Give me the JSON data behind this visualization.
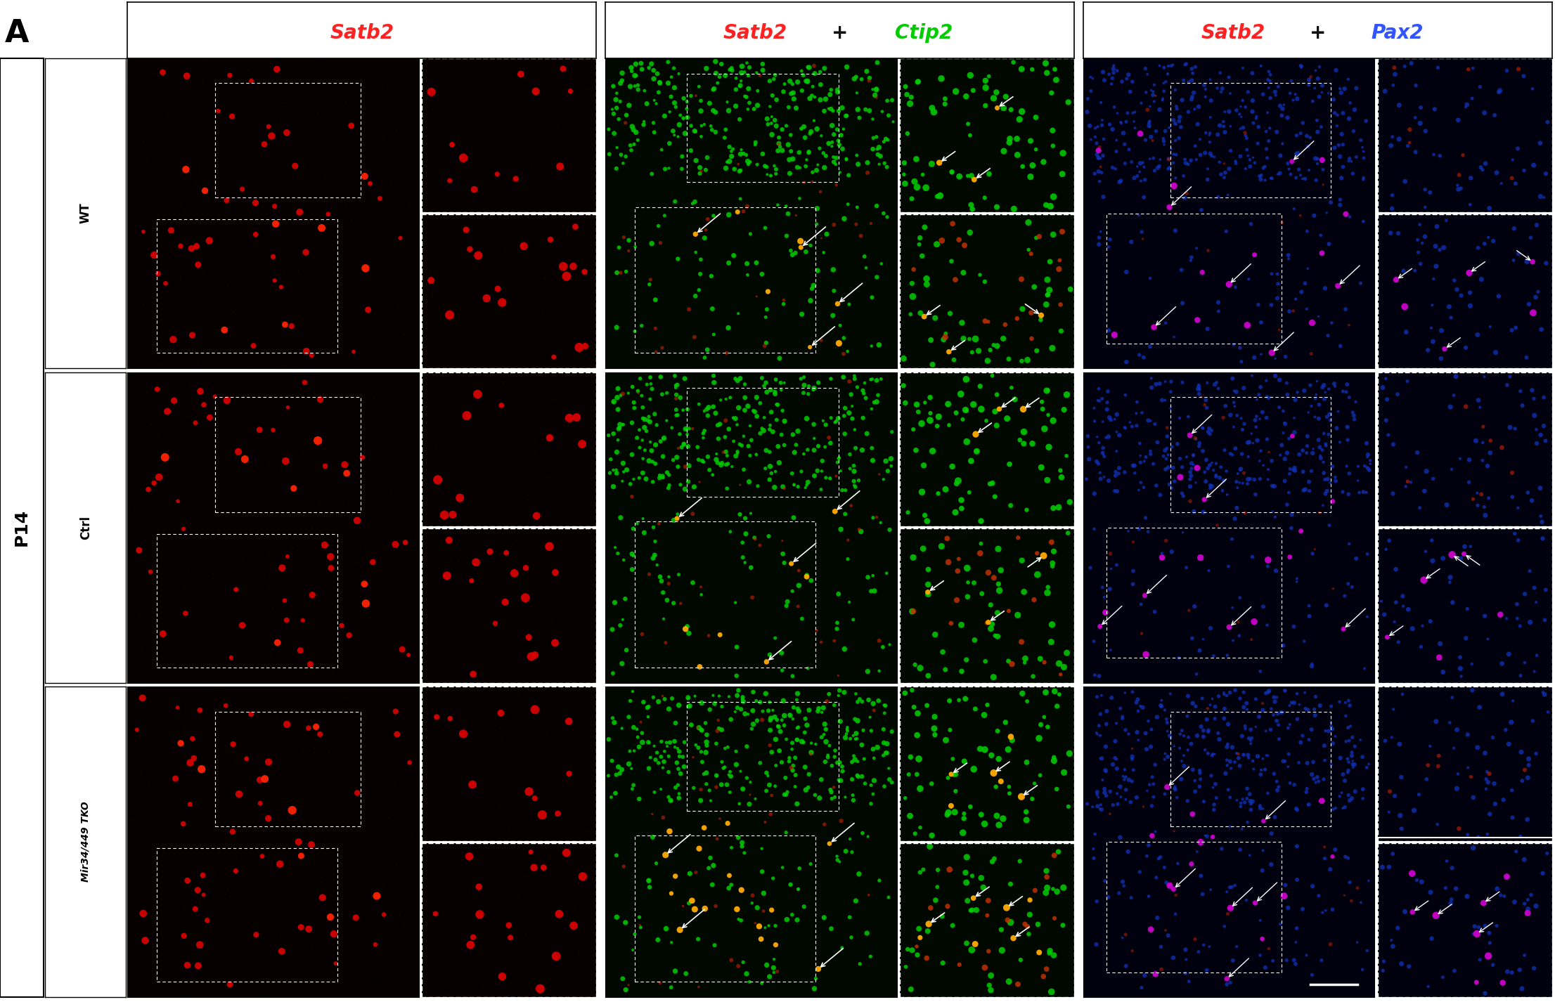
{
  "title_label": "A",
  "col_headers_col0": [
    [
      "Satb2",
      "#ff2222"
    ]
  ],
  "col_headers_col1": [
    [
      "Satb2",
      "#ff2222"
    ],
    [
      "+",
      "#111111"
    ],
    [
      "Ctip2",
      "#00ee00"
    ]
  ],
  "col_headers_col2": [
    [
      "Satb2",
      "#ff2222"
    ],
    [
      "+",
      "#111111"
    ],
    [
      "Pax2",
      "#3355ff"
    ]
  ],
  "row_labels": [
    "WT",
    "Ctrl",
    "Mir34/449 TKO"
  ],
  "row_label_italic": [
    false,
    false,
    true
  ],
  "p14_label": "P14",
  "outer_background": "#ffffff",
  "figsize": [
    22.12,
    14.26
  ],
  "dpi": 100,
  "col0_bg": "#0a0000",
  "col1_bg": "#000a00",
  "col2_bg": "#00000a",
  "dot_red": "#cc0000",
  "dot_bright_red": "#ff2200",
  "dot_green": "#00cc00",
  "dot_yellow": "#ffaa00",
  "dot_orange": "#ff6600",
  "dot_blue": "#2244bb",
  "dot_magenta": "#cc00cc",
  "dot_pink": "#ff44aa"
}
